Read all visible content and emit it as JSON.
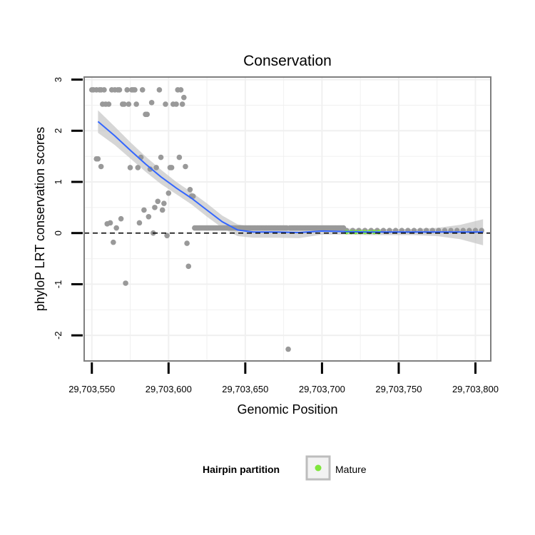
{
  "chart_data": {
    "type": "scatter",
    "title": "Conservation",
    "xlabel": "Genomic Position",
    "ylabel": "phyloP LRT conservation scores",
    "xlim": [
      29703545,
      29703810
    ],
    "ylim": [
      -2.5,
      3.05
    ],
    "x_ticks": [
      29703550,
      29703600,
      29703650,
      29703700,
      29703750,
      29703800
    ],
    "x_tick_labels": [
      "29,703,550",
      "29,703,600",
      "29,703,650",
      "29,703,700",
      "29,703,750",
      "29,703,800"
    ],
    "y_ticks": [
      -2,
      -1,
      0,
      1,
      2,
      3
    ],
    "y_tick_labels": [
      "-2",
      "-1",
      "0",
      "1",
      "2",
      "3"
    ],
    "grid": true,
    "reference_line_y": 0,
    "legend": {
      "title": "Hairpin partition",
      "placement": "bottom",
      "entries": [
        {
          "label": "Mature",
          "color": "#7fe63c"
        }
      ]
    },
    "colors": {
      "points": "#999999",
      "mature_points": "#7fe63c",
      "smooth_line": "#3366ff",
      "ribbon": "#c8c8c8",
      "panel_border": "#7f7f7f",
      "grid": "#f0f0f0"
    },
    "points": [
      {
        "x": 29703550,
        "y": 2.8
      },
      {
        "x": 29703551,
        "y": 2.8
      },
      {
        "x": 29703553,
        "y": 2.8
      },
      {
        "x": 29703553,
        "y": 1.45
      },
      {
        "x": 29703554,
        "y": 1.45
      },
      {
        "x": 29703555,
        "y": 2.8
      },
      {
        "x": 29703556,
        "y": 2.8
      },
      {
        "x": 29703556,
        "y": 1.3
      },
      {
        "x": 29703557,
        "y": 2.52
      },
      {
        "x": 29703558,
        "y": 2.8
      },
      {
        "x": 29703559,
        "y": 2.52
      },
      {
        "x": 29703560,
        "y": 0.18
      },
      {
        "x": 29703561,
        "y": 2.52
      },
      {
        "x": 29703562,
        "y": 0.2
      },
      {
        "x": 29703563,
        "y": 2.8
      },
      {
        "x": 29703564,
        "y": -0.18
      },
      {
        "x": 29703565,
        "y": 2.8
      },
      {
        "x": 29703566,
        "y": 0.1
      },
      {
        "x": 29703567,
        "y": 2.8
      },
      {
        "x": 29703568,
        "y": 2.8
      },
      {
        "x": 29703569,
        "y": 0.28
      },
      {
        "x": 29703570,
        "y": 2.52
      },
      {
        "x": 29703571,
        "y": 2.52
      },
      {
        "x": 29703572,
        "y": -0.98
      },
      {
        "x": 29703573,
        "y": 2.8
      },
      {
        "x": 29703574,
        "y": 2.52
      },
      {
        "x": 29703575,
        "y": 1.28
      },
      {
        "x": 29703576,
        "y": 2.8
      },
      {
        "x": 29703577,
        "y": 2.8
      },
      {
        "x": 29703578,
        "y": 2.8
      },
      {
        "x": 29703579,
        "y": 2.52
      },
      {
        "x": 29703580,
        "y": 1.28
      },
      {
        "x": 29703581,
        "y": 0.2
      },
      {
        "x": 29703582,
        "y": 1.48
      },
      {
        "x": 29703583,
        "y": 2.8
      },
      {
        "x": 29703584,
        "y": 0.45
      },
      {
        "x": 29703585,
        "y": 2.32
      },
      {
        "x": 29703586,
        "y": 2.32
      },
      {
        "x": 29703587,
        "y": 0.32
      },
      {
        "x": 29703588,
        "y": 1.25
      },
      {
        "x": 29703589,
        "y": 2.55
      },
      {
        "x": 29703590,
        "y": 0.0
      },
      {
        "x": 29703591,
        "y": 0.5
      },
      {
        "x": 29703592,
        "y": 1.28
      },
      {
        "x": 29703593,
        "y": 0.62
      },
      {
        "x": 29703594,
        "y": 2.8
      },
      {
        "x": 29703595,
        "y": 1.48
      },
      {
        "x": 29703596,
        "y": 0.45
      },
      {
        "x": 29703597,
        "y": 0.58
      },
      {
        "x": 29703598,
        "y": 2.52
      },
      {
        "x": 29703599,
        "y": -0.05
      },
      {
        "x": 29703600,
        "y": 0.78
      },
      {
        "x": 29703601,
        "y": 1.28
      },
      {
        "x": 29703602,
        "y": 1.28
      },
      {
        "x": 29703603,
        "y": 2.52
      },
      {
        "x": 29703605,
        "y": 2.52
      },
      {
        "x": 29703606,
        "y": 2.8
      },
      {
        "x": 29703607,
        "y": 1.48
      },
      {
        "x": 29703608,
        "y": 2.8
      },
      {
        "x": 29703609,
        "y": 2.52
      },
      {
        "x": 29703610,
        "y": 2.65
      },
      {
        "x": 29703611,
        "y": 1.3
      },
      {
        "x": 29703612,
        "y": -0.2
      },
      {
        "x": 29703613,
        "y": -0.65
      },
      {
        "x": 29703614,
        "y": 0.85
      },
      {
        "x": 29703615,
        "y": 0.72
      },
      {
        "x": 29703616,
        "y": 0.72
      },
      {
        "x": 29703617,
        "y": 0.1
      },
      {
        "x": 29703618,
        "y": 0.1
      },
      {
        "x": 29703619,
        "y": 0.1
      },
      {
        "x": 29703620,
        "y": 0.1
      },
      {
        "x": 29703621,
        "y": 0.1
      },
      {
        "x": 29703622,
        "y": 0.1
      },
      {
        "x": 29703623,
        "y": 0.1
      },
      {
        "x": 29703624,
        "y": 0.1
      },
      {
        "x": 29703625,
        "y": 0.1
      },
      {
        "x": 29703626,
        "y": 0.1
      },
      {
        "x": 29703627,
        "y": 0.1
      },
      {
        "x": 29703628,
        "y": 0.1
      },
      {
        "x": 29703629,
        "y": 0.1
      },
      {
        "x": 29703630,
        "y": 0.1
      },
      {
        "x": 29703631,
        "y": 0.1
      },
      {
        "x": 29703632,
        "y": 0.1
      },
      {
        "x": 29703633,
        "y": 0.1
      },
      {
        "x": 29703634,
        "y": 0.1
      },
      {
        "x": 29703635,
        "y": 0.1
      },
      {
        "x": 29703636,
        "y": 0.1
      },
      {
        "x": 29703637,
        "y": 0.1
      },
      {
        "x": 29703638,
        "y": 0.1
      },
      {
        "x": 29703639,
        "y": 0.1
      },
      {
        "x": 29703640,
        "y": 0.1
      },
      {
        "x": 29703641,
        "y": 0.1
      },
      {
        "x": 29703642,
        "y": 0.1
      },
      {
        "x": 29703643,
        "y": 0.1
      },
      {
        "x": 29703644,
        "y": 0.1
      },
      {
        "x": 29703645,
        "y": 0.1
      },
      {
        "x": 29703646,
        "y": 0.1
      },
      {
        "x": 29703647,
        "y": 0.1
      },
      {
        "x": 29703648,
        "y": 0.1
      },
      {
        "x": 29703649,
        "y": 0.1
      },
      {
        "x": 29703650,
        "y": 0.1
      },
      {
        "x": 29703651,
        "y": 0.1
      },
      {
        "x": 29703652,
        "y": 0.1
      },
      {
        "x": 29703653,
        "y": 0.1
      },
      {
        "x": 29703654,
        "y": 0.1
      },
      {
        "x": 29703655,
        "y": 0.1
      },
      {
        "x": 29703656,
        "y": 0.1
      },
      {
        "x": 29703657,
        "y": 0.1
      },
      {
        "x": 29703658,
        "y": 0.1
      },
      {
        "x": 29703659,
        "y": 0.1
      },
      {
        "x": 29703660,
        "y": 0.1
      },
      {
        "x": 29703661,
        "y": 0.1
      },
      {
        "x": 29703662,
        "y": 0.1
      },
      {
        "x": 29703663,
        "y": 0.1
      },
      {
        "x": 29703664,
        "y": 0.1
      },
      {
        "x": 29703665,
        "y": 0.1
      },
      {
        "x": 29703666,
        "y": 0.1
      },
      {
        "x": 29703667,
        "y": 0.1
      },
      {
        "x": 29703668,
        "y": 0.1
      },
      {
        "x": 29703669,
        "y": 0.1
      },
      {
        "x": 29703670,
        "y": 0.1
      },
      {
        "x": 29703671,
        "y": 0.1
      },
      {
        "x": 29703672,
        "y": 0.1
      },
      {
        "x": 29703673,
        "y": 0.1
      },
      {
        "x": 29703674,
        "y": 0.1
      },
      {
        "x": 29703675,
        "y": 0.1
      },
      {
        "x": 29703676,
        "y": 0.1
      },
      {
        "x": 29703677,
        "y": 0.1
      },
      {
        "x": 29703678,
        "y": -2.27
      },
      {
        "x": 29703679,
        "y": 0.1
      },
      {
        "x": 29703680,
        "y": 0.1
      },
      {
        "x": 29703681,
        "y": 0.1
      },
      {
        "x": 29703682,
        "y": 0.1
      },
      {
        "x": 29703683,
        "y": 0.1
      },
      {
        "x": 29703684,
        "y": 0.1
      },
      {
        "x": 29703685,
        "y": 0.1
      },
      {
        "x": 29703686,
        "y": 0.1
      },
      {
        "x": 29703687,
        "y": 0.1
      },
      {
        "x": 29703688,
        "y": 0.1
      },
      {
        "x": 29703689,
        "y": 0.1
      },
      {
        "x": 29703690,
        "y": 0.1
      },
      {
        "x": 29703691,
        "y": 0.1
      },
      {
        "x": 29703692,
        "y": 0.1
      },
      {
        "x": 29703693,
        "y": 0.1
      },
      {
        "x": 29703694,
        "y": 0.1
      },
      {
        "x": 29703695,
        "y": 0.1
      },
      {
        "x": 29703696,
        "y": 0.1
      },
      {
        "x": 29703697,
        "y": 0.1
      },
      {
        "x": 29703698,
        "y": 0.1
      },
      {
        "x": 29703699,
        "y": 0.1
      },
      {
        "x": 29703700,
        "y": 0.1
      },
      {
        "x": 29703701,
        "y": 0.1
      },
      {
        "x": 29703702,
        "y": 0.1
      },
      {
        "x": 29703703,
        "y": 0.1
      },
      {
        "x": 29703704,
        "y": 0.1
      },
      {
        "x": 29703705,
        "y": 0.1
      },
      {
        "x": 29703706,
        "y": 0.1
      },
      {
        "x": 29703707,
        "y": 0.1
      },
      {
        "x": 29703708,
        "y": 0.1
      },
      {
        "x": 29703709,
        "y": 0.1
      },
      {
        "x": 29703710,
        "y": 0.1
      },
      {
        "x": 29703711,
        "y": 0.1
      },
      {
        "x": 29703712,
        "y": 0.1
      },
      {
        "x": 29703713,
        "y": 0.1
      },
      {
        "x": 29703714,
        "y": 0.1
      },
      {
        "x": 29703716,
        "y": 0.05
      },
      {
        "x": 29703720,
        "y": 0.05
      },
      {
        "x": 29703724,
        "y": 0.05
      },
      {
        "x": 29703728,
        "y": 0.05
      },
      {
        "x": 29703732,
        "y": 0.05
      },
      {
        "x": 29703736,
        "y": 0.05
      },
      {
        "x": 29703740,
        "y": 0.05
      },
      {
        "x": 29703744,
        "y": 0.05
      },
      {
        "x": 29703748,
        "y": 0.05
      },
      {
        "x": 29703752,
        "y": 0.05
      },
      {
        "x": 29703756,
        "y": 0.05
      },
      {
        "x": 29703760,
        "y": 0.05
      },
      {
        "x": 29703764,
        "y": 0.05
      },
      {
        "x": 29703768,
        "y": 0.05
      },
      {
        "x": 29703772,
        "y": 0.05
      },
      {
        "x": 29703776,
        "y": 0.05
      },
      {
        "x": 29703780,
        "y": 0.05
      },
      {
        "x": 29703784,
        "y": 0.05
      },
      {
        "x": 29703788,
        "y": 0.05
      },
      {
        "x": 29703792,
        "y": 0.05
      },
      {
        "x": 29703796,
        "y": 0.05
      },
      {
        "x": 29703800,
        "y": 0.05
      },
      {
        "x": 29703804,
        "y": 0.05
      }
    ],
    "mature_points": [
      {
        "x": 29703716,
        "y": 0.02
      },
      {
        "x": 29703719,
        "y": 0.02
      },
      {
        "x": 29703722,
        "y": 0.02
      },
      {
        "x": 29703725,
        "y": 0.02
      },
      {
        "x": 29703728,
        "y": 0.02
      },
      {
        "x": 29703731,
        "y": 0.02
      },
      {
        "x": 29703734,
        "y": 0.02
      },
      {
        "x": 29703737,
        "y": 0.02
      }
    ],
    "smooth_line": [
      {
        "x": 29703554,
        "y": 2.18
      },
      {
        "x": 29703565,
        "y": 1.9
      },
      {
        "x": 29703575,
        "y": 1.62
      },
      {
        "x": 29703585,
        "y": 1.35
      },
      {
        "x": 29703595,
        "y": 1.1
      },
      {
        "x": 29703605,
        "y": 0.88
      },
      {
        "x": 29703615,
        "y": 0.68
      },
      {
        "x": 29703625,
        "y": 0.45
      },
      {
        "x": 29703635,
        "y": 0.22
      },
      {
        "x": 29703645,
        "y": 0.06
      },
      {
        "x": 29703655,
        "y": 0.02
      },
      {
        "x": 29703670,
        "y": 0.02
      },
      {
        "x": 29703685,
        "y": 0.01
      },
      {
        "x": 29703700,
        "y": 0.04
      },
      {
        "x": 29703715,
        "y": 0.03
      },
      {
        "x": 29703730,
        "y": 0.02
      },
      {
        "x": 29703745,
        "y": 0.02
      },
      {
        "x": 29703760,
        "y": 0.02
      },
      {
        "x": 29703775,
        "y": 0.02
      },
      {
        "x": 29703790,
        "y": 0.02
      },
      {
        "x": 29703805,
        "y": 0.02
      }
    ],
    "ribbon_upper": [
      {
        "x": 29703554,
        "y": 2.4
      },
      {
        "x": 29703565,
        "y": 2.08
      },
      {
        "x": 29703575,
        "y": 1.78
      },
      {
        "x": 29703585,
        "y": 1.5
      },
      {
        "x": 29703595,
        "y": 1.24
      },
      {
        "x": 29703605,
        "y": 1.0
      },
      {
        "x": 29703615,
        "y": 0.8
      },
      {
        "x": 29703625,
        "y": 0.58
      },
      {
        "x": 29703635,
        "y": 0.34
      },
      {
        "x": 29703645,
        "y": 0.17
      },
      {
        "x": 29703655,
        "y": 0.12
      },
      {
        "x": 29703670,
        "y": 0.11
      },
      {
        "x": 29703685,
        "y": 0.1
      },
      {
        "x": 29703700,
        "y": 0.1
      },
      {
        "x": 29703715,
        "y": 0.09
      },
      {
        "x": 29703730,
        "y": 0.08
      },
      {
        "x": 29703745,
        "y": 0.08
      },
      {
        "x": 29703760,
        "y": 0.08
      },
      {
        "x": 29703775,
        "y": 0.1
      },
      {
        "x": 29703790,
        "y": 0.16
      },
      {
        "x": 29703805,
        "y": 0.27
      }
    ],
    "ribbon_lower": [
      {
        "x": 29703554,
        "y": 1.96
      },
      {
        "x": 29703565,
        "y": 1.72
      },
      {
        "x": 29703575,
        "y": 1.46
      },
      {
        "x": 29703585,
        "y": 1.2
      },
      {
        "x": 29703595,
        "y": 0.96
      },
      {
        "x": 29703605,
        "y": 0.76
      },
      {
        "x": 29703615,
        "y": 0.56
      },
      {
        "x": 29703625,
        "y": 0.32
      },
      {
        "x": 29703635,
        "y": 0.1
      },
      {
        "x": 29703645,
        "y": -0.06
      },
      {
        "x": 29703655,
        "y": -0.09
      },
      {
        "x": 29703670,
        "y": -0.09
      },
      {
        "x": 29703685,
        "y": -0.1
      },
      {
        "x": 29703700,
        "y": -0.03
      },
      {
        "x": 29703715,
        "y": -0.03
      },
      {
        "x": 29703730,
        "y": -0.04
      },
      {
        "x": 29703745,
        "y": -0.04
      },
      {
        "x": 29703760,
        "y": -0.04
      },
      {
        "x": 29703775,
        "y": -0.06
      },
      {
        "x": 29703790,
        "y": -0.12
      },
      {
        "x": 29703805,
        "y": -0.24
      }
    ]
  }
}
